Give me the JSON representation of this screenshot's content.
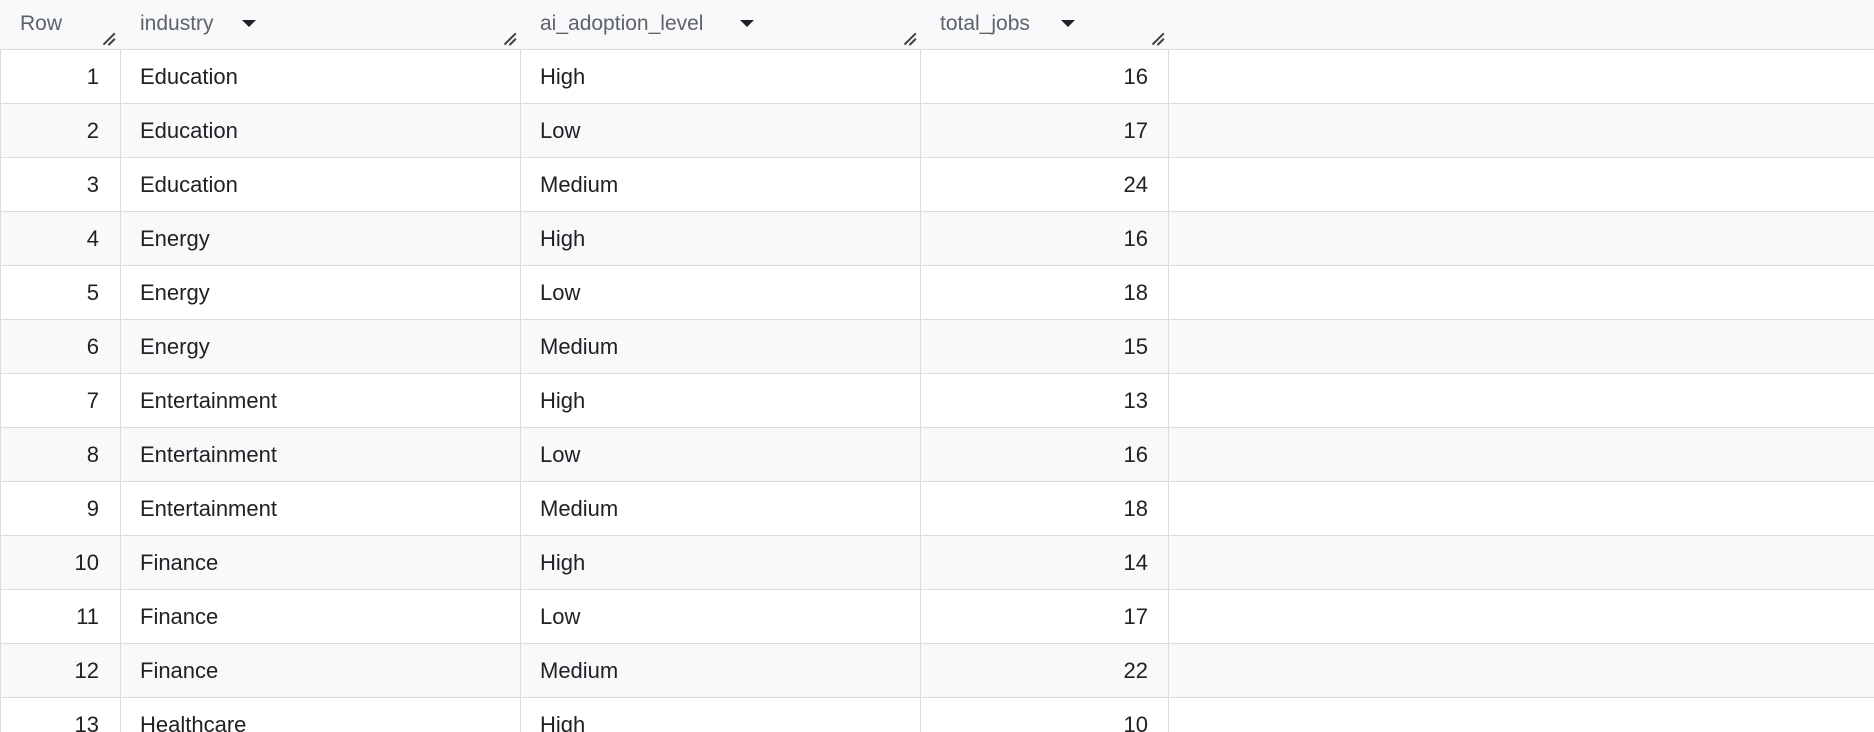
{
  "columns": {
    "row": "Row",
    "industry": "industry",
    "ai_adoption_level": "ai_adoption_level",
    "total_jobs": "total_jobs"
  },
  "rows": [
    {
      "row": "1",
      "industry": "Education",
      "ai_adoption_level": "High",
      "total_jobs": "16"
    },
    {
      "row": "2",
      "industry": "Education",
      "ai_adoption_level": "Low",
      "total_jobs": "17"
    },
    {
      "row": "3",
      "industry": "Education",
      "ai_adoption_level": "Medium",
      "total_jobs": "24"
    },
    {
      "row": "4",
      "industry": "Energy",
      "ai_adoption_level": "High",
      "total_jobs": "16"
    },
    {
      "row": "5",
      "industry": "Energy",
      "ai_adoption_level": "Low",
      "total_jobs": "18"
    },
    {
      "row": "6",
      "industry": "Energy",
      "ai_adoption_level": "Medium",
      "total_jobs": "15"
    },
    {
      "row": "7",
      "industry": "Entertainment",
      "ai_adoption_level": "High",
      "total_jobs": "13"
    },
    {
      "row": "8",
      "industry": "Entertainment",
      "ai_adoption_level": "Low",
      "total_jobs": "16"
    },
    {
      "row": "9",
      "industry": "Entertainment",
      "ai_adoption_level": "Medium",
      "total_jobs": "18"
    },
    {
      "row": "10",
      "industry": "Finance",
      "ai_adoption_level": "High",
      "total_jobs": "14"
    },
    {
      "row": "11",
      "industry": "Finance",
      "ai_adoption_level": "Low",
      "total_jobs": "17"
    },
    {
      "row": "12",
      "industry": "Finance",
      "ai_adoption_level": "Medium",
      "total_jobs": "22"
    },
    {
      "row": "13",
      "industry": "Healthcare",
      "ai_adoption_level": "High",
      "total_jobs": "10"
    }
  ]
}
